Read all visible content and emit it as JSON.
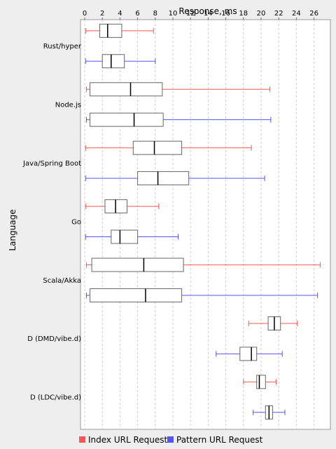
{
  "chart_data": {
    "type": "boxplot",
    "orientation": "horizontal",
    "title": "",
    "xlabel": "Response, ms",
    "ylabel": "Language",
    "xlim": [
      0,
      28
    ],
    "xticks": [
      0,
      2,
      4,
      6,
      8,
      10,
      12,
      14,
      16,
      18,
      20,
      22,
      24,
      26
    ],
    "xtick_labels": [
      "0",
      "2",
      "4",
      "6",
      "8",
      "10",
      "12",
      "14",
      "16",
      "18",
      "20",
      "22",
      "24",
      "26"
    ],
    "grid": "vertical dashed",
    "legend_position": "bottom",
    "categories": [
      "Rust/hyper",
      "Node.js",
      "Java/Spring Boot",
      "Go",
      "Scala/Akka",
      "D (DMD/vibe.d)",
      "D (LDC/vibe.d)"
    ],
    "series": [
      {
        "name": "Index URL Request",
        "color": "#ff5555",
        "boxes": [
          {
            "min": 0.1,
            "q1": 1.7,
            "median": 2.6,
            "q3": 4.2,
            "max": 7.8
          },
          {
            "min": 0.2,
            "q1": 0.6,
            "median": 5.2,
            "q3": 8.8,
            "max": 21.0
          },
          {
            "min": 0.1,
            "q1": 5.5,
            "median": 7.9,
            "q3": 11.0,
            "max": 18.9
          },
          {
            "min": 0.1,
            "q1": 2.3,
            "median": 3.5,
            "q3": 4.8,
            "max": 8.4
          },
          {
            "min": 0.2,
            "q1": 0.8,
            "median": 6.7,
            "q3": 11.2,
            "max": 26.7
          },
          {
            "min": 18.6,
            "q1": 20.8,
            "median": 21.5,
            "q3": 22.2,
            "max": 24.1
          },
          {
            "min": 18.0,
            "q1": 19.5,
            "median": 19.8,
            "q3": 20.5,
            "max": 21.7
          }
        ]
      },
      {
        "name": "Pattern URL Request",
        "color": "#5555ff",
        "boxes": [
          {
            "min": 0.1,
            "q1": 2.0,
            "median": 3.0,
            "q3": 4.5,
            "max": 8.0
          },
          {
            "min": 0.2,
            "q1": 0.6,
            "median": 5.6,
            "q3": 8.9,
            "max": 21.1
          },
          {
            "min": 0.1,
            "q1": 6.0,
            "median": 8.3,
            "q3": 11.8,
            "max": 20.4
          },
          {
            "min": 0.1,
            "q1": 3.0,
            "median": 4.0,
            "q3": 6.0,
            "max": 10.6
          },
          {
            "min": 0.2,
            "q1": 0.6,
            "median": 6.9,
            "q3": 11.0,
            "max": 26.4
          },
          {
            "min": 14.9,
            "q1": 17.6,
            "median": 18.9,
            "q3": 19.5,
            "max": 22.4
          },
          {
            "min": 19.1,
            "q1": 20.5,
            "median": 20.9,
            "q3": 21.3,
            "max": 22.7
          }
        ]
      }
    ]
  }
}
